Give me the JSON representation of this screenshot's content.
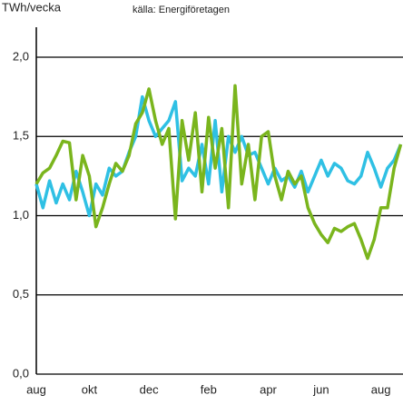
{
  "chart_data": {
    "type": "line",
    "y_label": "TWh/vecka",
    "source": "källa: Energiföretagen",
    "categories": [
      "aug",
      null,
      null,
      null,
      null,
      null,
      null,
      null,
      "okt",
      null,
      null,
      null,
      null,
      null,
      null,
      null,
      null,
      "dec",
      null,
      null,
      null,
      null,
      null,
      null,
      null,
      null,
      "feb",
      null,
      null,
      null,
      null,
      null,
      null,
      null,
      null,
      "apr",
      null,
      null,
      null,
      null,
      null,
      null,
      null,
      "jun",
      null,
      null,
      null,
      null,
      null,
      null,
      null,
      null,
      "aug",
      null,
      null,
      null
    ],
    "series": [
      {
        "color": "#2fc0e4",
        "values": [
          1.2,
          1.05,
          1.22,
          1.08,
          1.2,
          1.1,
          1.28,
          1.15,
          1.0,
          1.2,
          1.13,
          1.3,
          1.25,
          1.28,
          1.4,
          1.5,
          1.75,
          1.6,
          1.5,
          1.55,
          1.6,
          1.72,
          1.22,
          1.3,
          1.25,
          1.45,
          1.2,
          1.6,
          1.15,
          1.5,
          1.4,
          1.5,
          1.38,
          1.4,
          1.3,
          1.2,
          1.3,
          1.22,
          1.25,
          1.18,
          1.28,
          1.15,
          1.25,
          1.35,
          1.25,
          1.33,
          1.3,
          1.22,
          1.2,
          1.25,
          1.4,
          1.3,
          1.18,
          1.3,
          1.35,
          1.45
        ]
      },
      {
        "color": "#7ab51d",
        "values": [
          1.2,
          1.27,
          1.3,
          1.38,
          1.47,
          1.46,
          1.1,
          1.38,
          1.25,
          0.93,
          1.05,
          1.2,
          1.33,
          1.28,
          1.38,
          1.58,
          1.65,
          1.8,
          1.6,
          1.45,
          1.55,
          0.98,
          1.6,
          1.35,
          1.65,
          1.15,
          1.62,
          1.3,
          1.55,
          1.05,
          1.82,
          1.2,
          1.45,
          1.1,
          1.5,
          1.53,
          1.25,
          1.1,
          1.28,
          1.2,
          1.25,
          1.05,
          0.95,
          0.88,
          0.83,
          0.92,
          0.9,
          0.93,
          0.95,
          0.85,
          0.73,
          0.85,
          1.05,
          1.05,
          1.3,
          1.45
        ]
      }
    ],
    "ylim": [
      0,
      2.2
    ],
    "yticks": [
      {
        "value": 0,
        "label": "0,0"
      },
      {
        "value": 0.5,
        "label": "0,5"
      },
      {
        "value": 1,
        "label": "1,0"
      },
      {
        "value": 1.5,
        "label": "1,5"
      },
      {
        "value": 2,
        "label": "2,0"
      }
    ],
    "grid": true
  }
}
